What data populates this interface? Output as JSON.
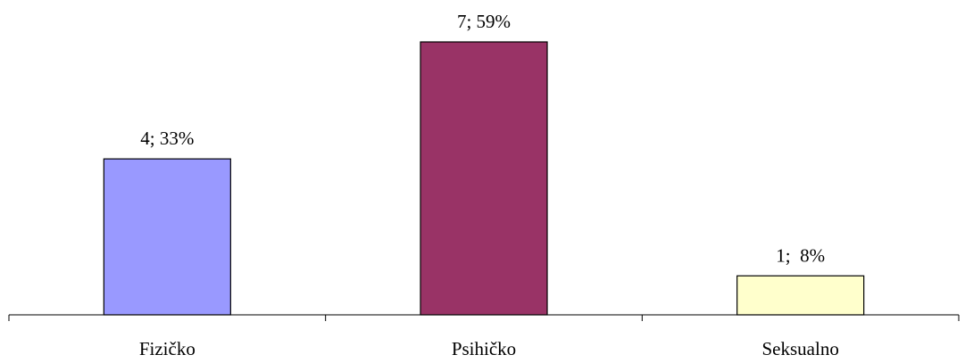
{
  "chart_data": {
    "type": "bar",
    "categories": [
      "Fizičko",
      "Psihičko",
      "Seksualno"
    ],
    "values": [
      4,
      7,
      1
    ],
    "percentages": [
      "33%",
      "59%",
      "8%"
    ],
    "data_labels": [
      "4; 33%",
      "7; 59%",
      "1;  8%"
    ],
    "colors": [
      "#9999ff",
      "#993366",
      "#ffffcc"
    ],
    "title": "",
    "xlabel": "",
    "ylabel": "",
    "ylim": [
      0,
      7
    ],
    "grid": false,
    "legend": "none"
  }
}
